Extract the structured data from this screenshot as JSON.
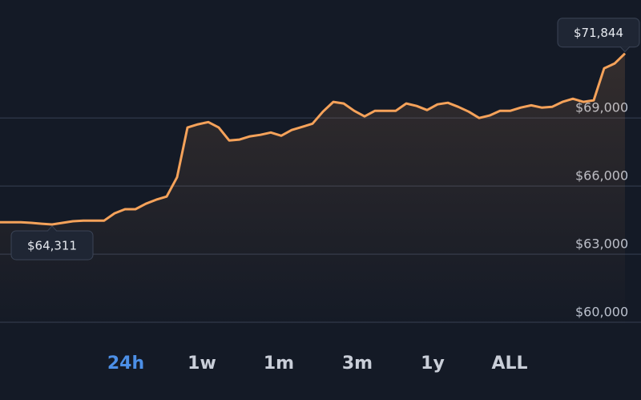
{
  "chart_data": {
    "type": "line",
    "values": [
      64410,
      64410,
      64410,
      64380,
      64340,
      64311,
      64380,
      64450,
      64480,
      64480,
      64480,
      64800,
      64980,
      64980,
      65220,
      65400,
      65540,
      66390,
      68580,
      68720,
      68820,
      68580,
      68010,
      68050,
      68190,
      68260,
      68360,
      68220,
      68470,
      68610,
      68750,
      69280,
      69710,
      69640,
      69320,
      69070,
      69320,
      69320,
      69320,
      69640,
      69530,
      69350,
      69600,
      69670,
      69490,
      69280,
      69000,
      69110,
      69320,
      69320,
      69460,
      69560,
      69460,
      69490,
      69710,
      69850,
      69710,
      69780,
      71190,
      71400,
      71844
    ],
    "color": "#f5a25a",
    "ylim": [
      59700,
      74200
    ],
    "yticks": [
      {
        "value": 60000,
        "label": "$60,000"
      },
      {
        "value": 63000,
        "label": "$63,000"
      },
      {
        "value": 66000,
        "label": "$66,000"
      },
      {
        "value": 69000,
        "label": "$69,000"
      }
    ],
    "grid": true,
    "max_label": "$71,844",
    "min_label": "$64,311",
    "ranges": [
      "24h",
      "1w",
      "1m",
      "3m",
      "1y",
      "ALL"
    ],
    "selected_range": "24h"
  }
}
